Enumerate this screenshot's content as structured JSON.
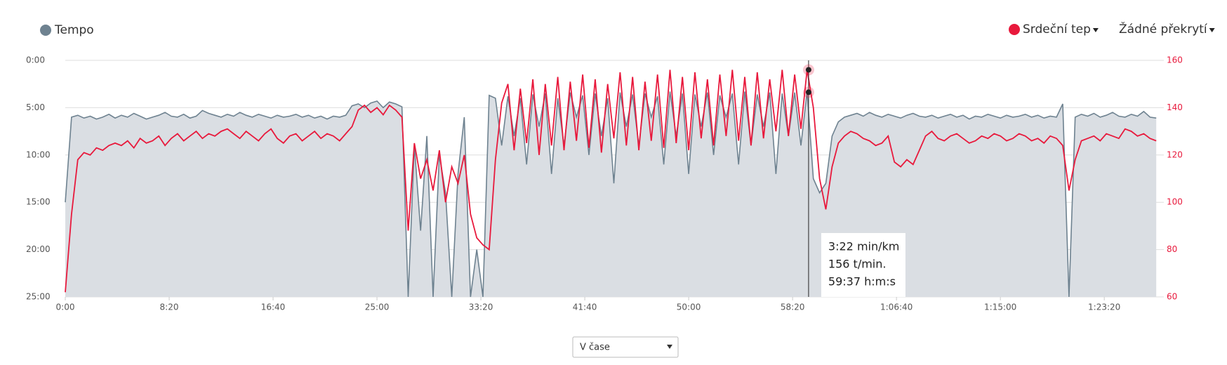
{
  "chart_data": {
    "type": "line",
    "legend_extra": "Žádné překrytí",
    "selector": "V čase",
    "x": [
      0,
      30,
      60,
      90,
      120,
      150,
      180,
      210,
      240,
      270,
      300,
      330,
      360,
      390,
      420,
      450,
      480,
      510,
      540,
      570,
      600,
      630,
      660,
      690,
      720,
      750,
      780,
      810,
      840,
      870,
      900,
      930,
      960,
      990,
      1020,
      1050,
      1080,
      1110,
      1140,
      1170,
      1200,
      1230,
      1260,
      1290,
      1320,
      1350,
      1380,
      1410,
      1440,
      1470,
      1500,
      1530,
      1560,
      1590,
      1620,
      1650,
      1680,
      1710,
      1740,
      1770,
      1800,
      1830,
      1860,
      1890,
      1920,
      1950,
      1980,
      2010,
      2040,
      2070,
      2100,
      2130,
      2160,
      2190,
      2220,
      2250,
      2280,
      2310,
      2340,
      2370,
      2400,
      2430,
      2460,
      2490,
      2520,
      2550,
      2580,
      2610,
      2640,
      2670,
      2700,
      2730,
      2760,
      2790,
      2820,
      2850,
      2880,
      2910,
      2940,
      2970,
      3000,
      3030,
      3060,
      3090,
      3120,
      3150,
      3180,
      3210,
      3240,
      3270,
      3300,
      3330,
      3360,
      3390,
      3420,
      3450,
      3480,
      3510,
      3540,
      3570,
      3600,
      3630,
      3660,
      3690,
      3720,
      3750,
      3780,
      3810,
      3840,
      3870,
      3900,
      3930,
      3960,
      3990,
      4020,
      4050,
      4080,
      4110,
      4140,
      4170,
      4200,
      4230,
      4260,
      4290,
      4320,
      4350,
      4380,
      4410,
      4440,
      4470,
      4500,
      4530,
      4560,
      4590,
      4620,
      4650,
      4680,
      4710,
      4740,
      4770,
      4800,
      4830,
      4860,
      4890,
      4920,
      4950,
      4980,
      5010,
      5040,
      5070,
      5100,
      5130,
      5160,
      5190,
      5220,
      5250
    ],
    "series": [
      {
        "name": "Tempo",
        "color": "#6e8290",
        "axis": "y",
        "values": [
          15,
          6,
          5.8,
          6.1,
          5.9,
          6.2,
          6,
          5.7,
          6.1,
          5.8,
          6,
          5.6,
          5.9,
          6.2,
          6,
          5.8,
          5.5,
          5.9,
          6,
          5.7,
          6.1,
          5.9,
          5.3,
          5.6,
          5.8,
          6,
          5.7,
          5.9,
          5.5,
          5.8,
          6,
          5.7,
          5.9,
          6.1,
          5.8,
          6,
          5.9,
          5.7,
          6,
          5.8,
          6.1,
          5.9,
          6.2,
          5.9,
          6,
          5.8,
          4.8,
          4.6,
          5,
          4.5,
          4.3,
          5,
          4.4,
          4.6,
          4.9,
          25,
          9,
          18,
          8,
          25,
          10,
          14,
          25,
          12,
          6,
          25,
          20,
          25,
          3.7,
          4,
          9,
          3.8,
          8,
          4,
          11,
          3.6,
          7,
          3.5,
          12,
          4,
          9,
          3.4,
          6,
          3.7,
          10,
          3.5,
          8,
          4,
          13,
          3.4,
          7,
          3.6,
          9,
          3.5,
          6,
          3.8,
          11,
          3.3,
          8,
          3.5,
          12,
          3.6,
          7,
          3.4,
          10,
          3.7,
          6,
          3.5,
          11,
          3.3,
          9,
          3.6,
          7,
          3.4,
          12,
          3.5,
          8,
          3.4,
          9,
          3.3,
          12.5,
          14,
          13,
          8,
          6.5,
          6,
          5.8,
          5.6,
          5.9,
          5.5,
          5.8,
          6,
          5.7,
          5.9,
          6.1,
          5.8,
          5.6,
          5.9,
          6,
          5.8,
          6.1,
          5.9,
          5.7,
          6,
          5.8,
          6.2,
          5.9,
          6,
          5.7,
          5.9,
          6.1,
          5.8,
          6,
          5.9,
          5.7,
          6,
          5.8,
          6.1,
          5.9,
          6,
          4.6,
          25,
          6,
          5.7,
          5.9,
          5.6,
          6,
          5.8,
          5.5,
          5.9,
          6,
          5.7,
          5.9,
          5.4,
          6,
          6.1
        ]
      },
      {
        "name": "Srdeční tep",
        "color": "#e8193c",
        "axis": "y2",
        "values": [
          62,
          95,
          118,
          121,
          120,
          123,
          122,
          124,
          125,
          124,
          126,
          123,
          127,
          125,
          126,
          128,
          124,
          127,
          129,
          126,
          128,
          130,
          127,
          129,
          128,
          130,
          131,
          129,
          127,
          130,
          128,
          126,
          129,
          131,
          127,
          125,
          128,
          129,
          126,
          128,
          130,
          127,
          129,
          128,
          126,
          129,
          132,
          139,
          141,
          138,
          140,
          137,
          141,
          139,
          136,
          88,
          125,
          110,
          118,
          105,
          122,
          100,
          115,
          108,
          120,
          95,
          85,
          82,
          80,
          118,
          142,
          150,
          122,
          148,
          125,
          152,
          120,
          150,
          124,
          153,
          122,
          151,
          126,
          154,
          123,
          152,
          121,
          150,
          127,
          155,
          124,
          153,
          122,
          151,
          126,
          154,
          123,
          156,
          125,
          153,
          122,
          155,
          127,
          152,
          124,
          154,
          128,
          156,
          126,
          153,
          124,
          155,
          127,
          152,
          130,
          156,
          128,
          154,
          131,
          156,
          140,
          110,
          97,
          115,
          125,
          128,
          130,
          129,
          127,
          126,
          124,
          125,
          128,
          117,
          115,
          118,
          116,
          122,
          128,
          130,
          127,
          126,
          128,
          129,
          127,
          125,
          126,
          128,
          127,
          129,
          128,
          126,
          127,
          129,
          128,
          126,
          127,
          125,
          128,
          127,
          124,
          105,
          118,
          126,
          127,
          128,
          126,
          129,
          128,
          127,
          131,
          130,
          128,
          129,
          127,
          126
        ]
      }
    ],
    "xlim": [
      0,
      5273
    ],
    "xticks": [
      {
        "value": 0,
        "label": "0:00"
      },
      {
        "value": 500,
        "label": "8:20"
      },
      {
        "value": 1000,
        "label": "16:40"
      },
      {
        "value": 1500,
        "label": "25:00"
      },
      {
        "value": 2000,
        "label": "33:20"
      },
      {
        "value": 2500,
        "label": "41:40"
      },
      {
        "value": 3000,
        "label": "50:00"
      },
      {
        "value": 3500,
        "label": "58:20"
      },
      {
        "value": 4000,
        "label": "1:06:40"
      },
      {
        "value": 4500,
        "label": "1:15:00"
      },
      {
        "value": 5000,
        "label": "1:23:20"
      }
    ],
    "ylim": [
      0,
      25
    ],
    "y_reversed": true,
    "yticks": [
      {
        "value": 0,
        "label": "0:00"
      },
      {
        "value": 5,
        "label": "5:00"
      },
      {
        "value": 10,
        "label": "10:00"
      },
      {
        "value": 15,
        "label": "15:00"
      },
      {
        "value": 20,
        "label": "20:00"
      },
      {
        "value": 25,
        "label": "25:00"
      }
    ],
    "y2lim": [
      60,
      160
    ],
    "y2ticks": [
      60,
      80,
      100,
      120,
      140,
      160
    ],
    "grid": true,
    "tooltip": {
      "x": 3577,
      "values": [
        3.37,
        156
      ],
      "lines": [
        "3:22 min/km",
        "156 t/min.",
        "59:37 h:m:s"
      ]
    }
  }
}
